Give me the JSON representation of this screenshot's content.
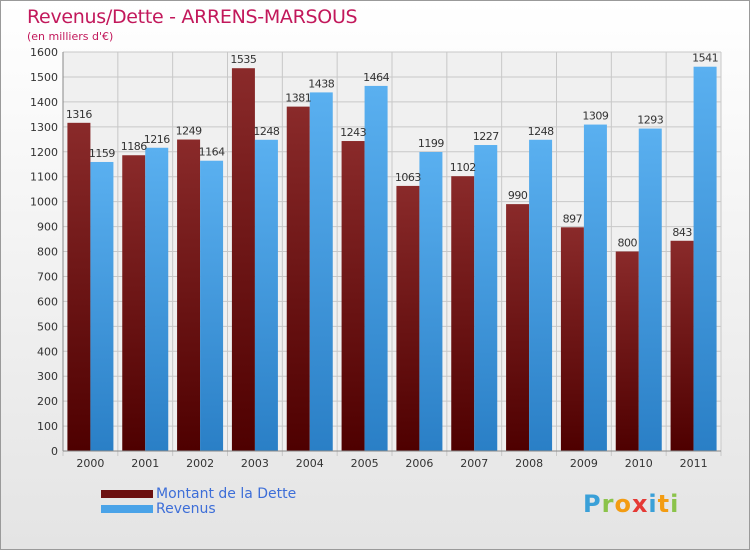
{
  "chart_data": {
    "type": "bar",
    "title": "Revenus/Dette - ARRENS-MARSOUS",
    "subtitle": "(en milliers d'€)",
    "categories": [
      "2000",
      "2001",
      "2002",
      "2003",
      "2004",
      "2005",
      "2006",
      "2007",
      "2008",
      "2009",
      "2010",
      "2011"
    ],
    "series": [
      {
        "name": "Montant de la Dette",
        "color": "#7a1a1a",
        "values": [
          1316,
          1186,
          1249,
          1535,
          1381,
          1243,
          1063,
          1102,
          990,
          897,
          800,
          843
        ]
      },
      {
        "name": "Revenus",
        "color": "#4aa3e8",
        "values": [
          1159,
          1216,
          1164,
          1248,
          1438,
          1464,
          1199,
          1227,
          1248,
          1309,
          1293,
          1541
        ]
      }
    ],
    "ylim": [
      0,
      1600
    ],
    "ytick_step": 100,
    "grid": true,
    "legend_position": "bottom-left"
  },
  "logo": {
    "letters": [
      {
        "ch": "P",
        "color": "#3aa0d8"
      },
      {
        "ch": "r",
        "color": "#8bc34a"
      },
      {
        "ch": "o",
        "color": "#f39c12"
      },
      {
        "ch": "x",
        "color": "#e53935"
      },
      {
        "ch": "i",
        "color": "#3aa0d8"
      },
      {
        "ch": "t",
        "color": "#f39c12"
      },
      {
        "ch": "i",
        "color": "#8bc34a"
      }
    ]
  }
}
